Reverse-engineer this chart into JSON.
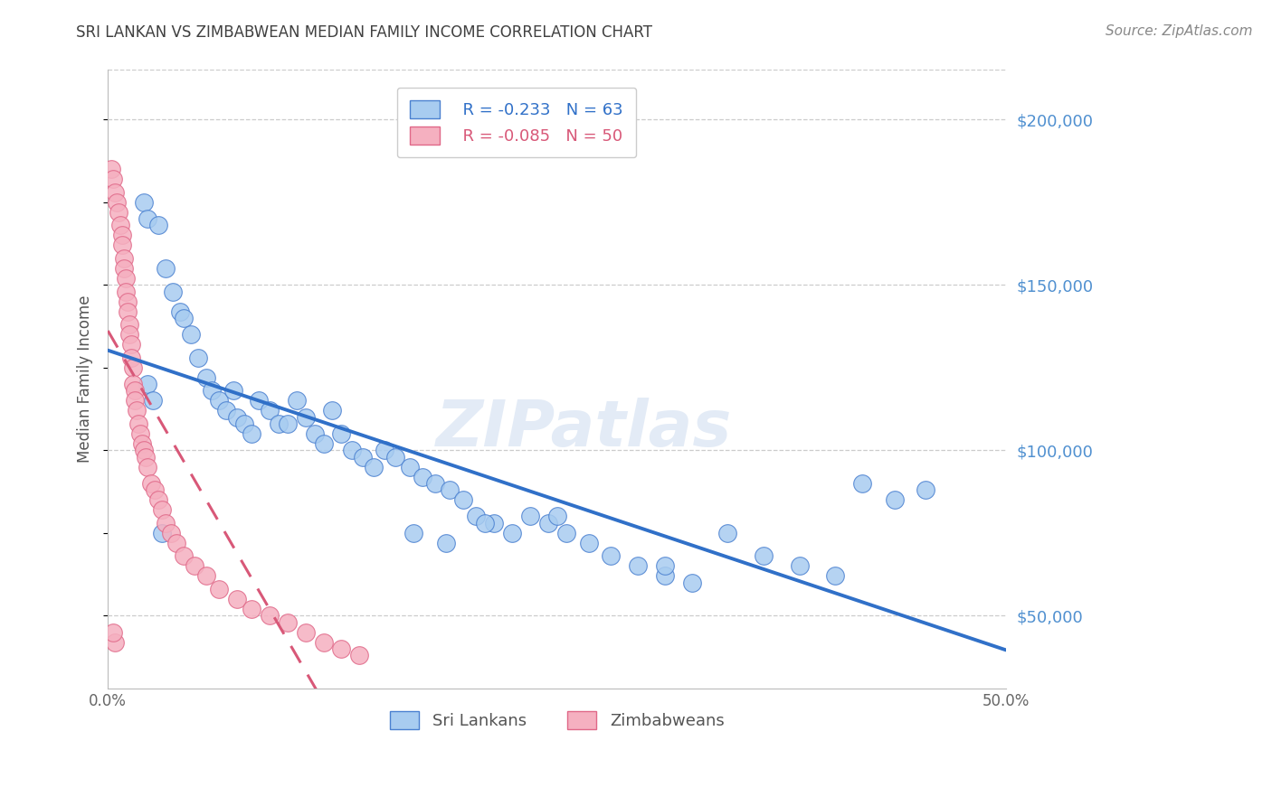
{
  "title": "SRI LANKAN VS ZIMBABWEAN MEDIAN FAMILY INCOME CORRELATION CHART",
  "source": "Source: ZipAtlas.com",
  "ylabel": "Median Family Income",
  "xlim": [
    0.0,
    0.5
  ],
  "ylim": [
    28000,
    215000
  ],
  "yticks_right": [
    50000,
    100000,
    150000,
    200000
  ],
  "ytick_labels_right": [
    "$50,000",
    "$100,000",
    "$150,000",
    "$200,000"
  ],
  "watermark": "ZIPatlas",
  "blue_R": -0.233,
  "blue_N": 63,
  "pink_R": -0.085,
  "pink_N": 50,
  "blue_fill": "#A8CCF0",
  "pink_fill": "#F5B0C0",
  "blue_edge": "#4A80D0",
  "pink_edge": "#E06888",
  "blue_line": "#3070C8",
  "pink_line": "#D85878",
  "grid_color": "#CCCCCC",
  "title_color": "#404040",
  "right_label_color": "#5090D0",
  "sri_lankans_x": [
    0.02,
    0.022,
    0.028,
    0.032,
    0.036,
    0.04,
    0.042,
    0.046,
    0.05,
    0.055,
    0.058,
    0.062,
    0.066,
    0.07,
    0.072,
    0.076,
    0.08,
    0.084,
    0.09,
    0.095,
    0.1,
    0.105,
    0.11,
    0.115,
    0.12,
    0.125,
    0.13,
    0.136,
    0.142,
    0.148,
    0.154,
    0.16,
    0.168,
    0.175,
    0.182,
    0.19,
    0.198,
    0.205,
    0.215,
    0.225,
    0.235,
    0.245,
    0.255,
    0.268,
    0.28,
    0.295,
    0.31,
    0.325,
    0.345,
    0.365,
    0.385,
    0.405,
    0.42,
    0.438,
    0.455,
    0.17,
    0.188,
    0.21,
    0.25,
    0.31,
    0.022,
    0.025,
    0.03
  ],
  "sri_lankans_y": [
    175000,
    170000,
    168000,
    155000,
    148000,
    142000,
    140000,
    135000,
    128000,
    122000,
    118000,
    115000,
    112000,
    118000,
    110000,
    108000,
    105000,
    115000,
    112000,
    108000,
    108000,
    115000,
    110000,
    105000,
    102000,
    112000,
    105000,
    100000,
    98000,
    95000,
    100000,
    98000,
    95000,
    92000,
    90000,
    88000,
    85000,
    80000,
    78000,
    75000,
    80000,
    78000,
    75000,
    72000,
    68000,
    65000,
    62000,
    60000,
    75000,
    68000,
    65000,
    62000,
    90000,
    85000,
    88000,
    75000,
    72000,
    78000,
    80000,
    65000,
    120000,
    115000,
    75000
  ],
  "zimbabweans_x": [
    0.002,
    0.003,
    0.004,
    0.005,
    0.006,
    0.007,
    0.008,
    0.008,
    0.009,
    0.009,
    0.01,
    0.01,
    0.011,
    0.011,
    0.012,
    0.012,
    0.013,
    0.013,
    0.014,
    0.014,
    0.015,
    0.015,
    0.016,
    0.017,
    0.018,
    0.019,
    0.02,
    0.021,
    0.022,
    0.024,
    0.026,
    0.028,
    0.03,
    0.032,
    0.035,
    0.038,
    0.042,
    0.048,
    0.055,
    0.062,
    0.072,
    0.08,
    0.09,
    0.1,
    0.11,
    0.12,
    0.13,
    0.14,
    0.004,
    0.003
  ],
  "zimbabweans_y": [
    185000,
    182000,
    178000,
    175000,
    172000,
    168000,
    165000,
    162000,
    158000,
    155000,
    152000,
    148000,
    145000,
    142000,
    138000,
    135000,
    132000,
    128000,
    125000,
    120000,
    118000,
    115000,
    112000,
    108000,
    105000,
    102000,
    100000,
    98000,
    95000,
    90000,
    88000,
    85000,
    82000,
    78000,
    75000,
    72000,
    68000,
    65000,
    62000,
    58000,
    55000,
    52000,
    50000,
    48000,
    45000,
    42000,
    40000,
    38000,
    42000,
    45000
  ]
}
